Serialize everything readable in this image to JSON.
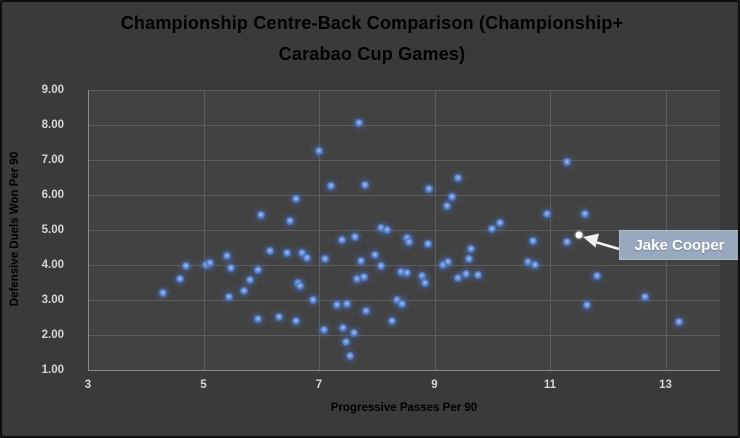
{
  "chart_data": {
    "type": "scatter",
    "title_line1": "Championship Centre-Back Comparison (Championship+",
    "title_line2": "Carabao Cup Games)",
    "xlabel": "Progressive Passes Per 90",
    "ylabel": "Defensive Duels Won Per 90",
    "x_ticks": [
      3,
      5,
      7,
      9,
      11,
      13
    ],
    "y_ticks": [
      "9.00",
      "8.00",
      "7.00",
      "6.00",
      "5.00",
      "4.00",
      "3.00",
      "2.00",
      "1.00"
    ],
    "xlim": [
      3,
      13.95
    ],
    "ylim": [
      1,
      9
    ],
    "grid": true,
    "legend": "none",
    "points": [
      [
        4.3,
        3.2
      ],
      [
        4.6,
        3.6
      ],
      [
        4.7,
        3.97
      ],
      [
        5.05,
        4.0
      ],
      [
        5.12,
        4.06
      ],
      [
        5.4,
        4.25
      ],
      [
        5.48,
        3.92
      ],
      [
        5.45,
        3.08
      ],
      [
        5.7,
        3.25
      ],
      [
        5.8,
        3.56
      ],
      [
        5.95,
        3.86
      ],
      [
        6.15,
        4.4
      ],
      [
        6.45,
        4.34
      ],
      [
        5.95,
        2.46
      ],
      [
        6.3,
        2.52
      ],
      [
        6.6,
        2.4
      ],
      [
        6.0,
        5.44
      ],
      [
        6.5,
        5.25
      ],
      [
        6.6,
        5.88
      ],
      [
        7.0,
        7.25
      ],
      [
        7.7,
        8.05
      ],
      [
        7.2,
        6.25
      ],
      [
        7.8,
        6.3
      ],
      [
        6.7,
        4.35
      ],
      [
        6.8,
        4.2
      ],
      [
        7.1,
        4.16
      ],
      [
        7.4,
        4.72
      ],
      [
        7.62,
        4.8
      ],
      [
        7.72,
        4.12
      ],
      [
        7.97,
        4.3
      ],
      [
        8.07,
        3.98
      ],
      [
        7.66,
        3.6
      ],
      [
        7.78,
        3.66
      ],
      [
        6.64,
        3.5
      ],
      [
        6.67,
        3.39
      ],
      [
        6.9,
        3.0
      ],
      [
        7.31,
        2.86
      ],
      [
        7.49,
        2.9
      ],
      [
        7.82,
        2.7
      ],
      [
        7.08,
        2.14
      ],
      [
        7.41,
        2.2
      ],
      [
        7.6,
        2.05
      ],
      [
        7.46,
        1.8
      ],
      [
        7.53,
        1.4
      ],
      [
        8.08,
        5.06
      ],
      [
        8.18,
        5.0
      ],
      [
        8.35,
        2.99
      ],
      [
        8.43,
        2.88
      ],
      [
        8.27,
        2.4
      ],
      [
        8.42,
        3.79
      ],
      [
        8.53,
        3.78
      ],
      [
        8.52,
        4.77
      ],
      [
        8.56,
        4.65
      ],
      [
        8.88,
        4.59
      ],
      [
        8.79,
        3.68
      ],
      [
        8.84,
        3.49
      ],
      [
        8.9,
        6.16
      ],
      [
        9.4,
        6.48
      ],
      [
        9.31,
        5.94
      ],
      [
        9.21,
        5.68
      ],
      [
        9.15,
        3.99
      ],
      [
        9.24,
        4.08
      ],
      [
        9.4,
        3.62
      ],
      [
        9.55,
        3.75
      ],
      [
        9.75,
        3.72
      ],
      [
        9.63,
        4.46
      ],
      [
        9.6,
        4.16
      ],
      [
        10.0,
        5.04
      ],
      [
        10.14,
        5.21
      ],
      [
        10.62,
        4.09
      ],
      [
        10.74,
        3.99
      ],
      [
        10.7,
        4.7
      ],
      [
        10.95,
        5.45
      ],
      [
        11.6,
        5.46
      ],
      [
        11.29,
        4.67
      ],
      [
        11.29,
        6.95
      ],
      [
        11.81,
        3.69
      ],
      [
        11.64,
        2.85
      ],
      [
        12.64,
        3.08
      ],
      [
        13.24,
        2.36
      ]
    ],
    "highlight_point": {
      "x": 11.5,
      "y": 4.85,
      "label": "Jake Cooper"
    },
    "colors": {
      "background": "#3a3a3a",
      "plot_background": "#424242",
      "gridline": "#5d5d5d",
      "axis_line": "#8a8a8a",
      "point": "#4472c4",
      "highlight_point": "#ffffff",
      "title_text": "#f0f0f0",
      "tick_text": "#d6d6d6",
      "callout_fill": "#98a9bf",
      "callout_text": "#ffffff"
    }
  }
}
